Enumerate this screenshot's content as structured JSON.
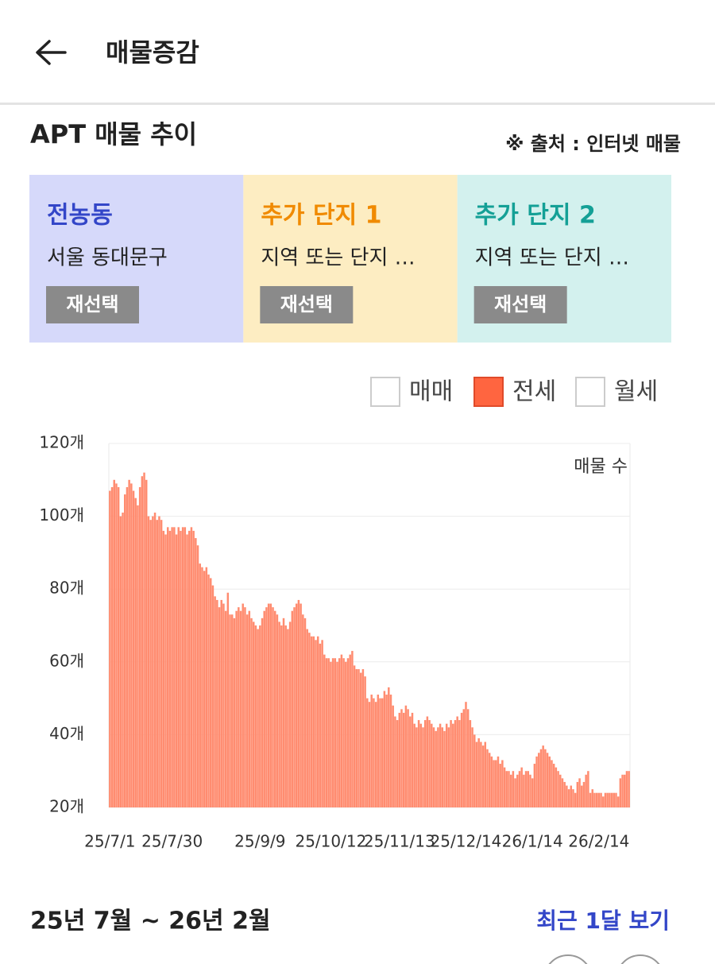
{
  "header": {
    "title": "매물증감"
  },
  "section": {
    "title": "APT 매물 추이",
    "source": "※ 출처 : 인터넷 매물"
  },
  "cards": [
    {
      "name": "전농동",
      "region": "서울 동대문구",
      "button": "재선택"
    },
    {
      "name": "추가 단지 1",
      "region": "지역 또는 단지 …",
      "button": "재선택"
    },
    {
      "name": "추가 단지 2",
      "region": "지역 또는 단지 …",
      "button": "재선택"
    }
  ],
  "filters": {
    "check_color": "#ff6540",
    "items": [
      {
        "label": "매매",
        "checked": false
      },
      {
        "label": "전세",
        "checked": true
      },
      {
        "label": "월세",
        "checked": false
      }
    ]
  },
  "chart_data": {
    "type": "bar",
    "annotation": "매물 수",
    "color": "#ff8c70",
    "grid": true,
    "ylim": [
      20,
      120
    ],
    "yticks": [
      {
        "value": 20,
        "label": "20개"
      },
      {
        "value": 40,
        "label": "40개"
      },
      {
        "value": 60,
        "label": "60개"
      },
      {
        "value": 80,
        "label": "80개"
      },
      {
        "value": 100,
        "label": "100개"
      },
      {
        "value": 120,
        "label": "120개"
      }
    ],
    "categories": [
      "25/7/1",
      null,
      null,
      null,
      null,
      null,
      null,
      null,
      null,
      null,
      null,
      null,
      null,
      null,
      null,
      null,
      null,
      null,
      null,
      null,
      null,
      null,
      null,
      null,
      null,
      null,
      null,
      null,
      null,
      "25/7/30",
      null,
      null,
      null,
      null,
      null,
      null,
      null,
      null,
      null,
      null,
      null,
      null,
      null,
      null,
      null,
      null,
      null,
      null,
      null,
      null,
      null,
      null,
      null,
      null,
      null,
      null,
      null,
      null,
      null,
      null,
      null,
      null,
      null,
      null,
      null,
      null,
      null,
      null,
      null,
      null,
      "25/9/9",
      null,
      null,
      null,
      null,
      null,
      null,
      null,
      null,
      null,
      null,
      null,
      null,
      null,
      null,
      null,
      null,
      null,
      null,
      null,
      null,
      null,
      null,
      null,
      null,
      null,
      null,
      null,
      null,
      null,
      null,
      null,
      null,
      "25/10/12",
      null,
      null,
      null,
      null,
      null,
      null,
      null,
      null,
      null,
      null,
      null,
      null,
      null,
      null,
      null,
      null,
      null,
      null,
      null,
      null,
      null,
      null,
      null,
      null,
      null,
      null,
      null,
      null,
      null,
      null,
      null,
      "25/11/13",
      null,
      null,
      null,
      null,
      null,
      null,
      null,
      null,
      null,
      null,
      null,
      null,
      null,
      null,
      null,
      null,
      null,
      null,
      null,
      null,
      null,
      null,
      null,
      null,
      null,
      null,
      null,
      null,
      null,
      null,
      "25/12/14",
      null,
      null,
      null,
      null,
      null,
      null,
      null,
      null,
      null,
      null,
      null,
      null,
      null,
      null,
      null,
      null,
      null,
      null,
      null,
      null,
      null,
      null,
      null,
      null,
      null,
      null,
      null,
      null,
      null,
      null,
      "26/1/14",
      null,
      null,
      null,
      null,
      null,
      null,
      null,
      null,
      null,
      null,
      null,
      null,
      null,
      null,
      null,
      null,
      null,
      null,
      null,
      null,
      null,
      null,
      null,
      null,
      null,
      null,
      null,
      null,
      null,
      null,
      "26/2/14",
      null,
      null,
      null,
      null,
      null,
      null,
      null,
      null,
      null,
      null,
      null,
      null,
      null,
      null
    ],
    "values": [
      107,
      108,
      110,
      109,
      108,
      100,
      101,
      106,
      108,
      110,
      109,
      107,
      105,
      103,
      108,
      111,
      112,
      110,
      100,
      99,
      100,
      101,
      99,
      100,
      99,
      96,
      95,
      97,
      96,
      97,
      97,
      95,
      97,
      96,
      97,
      97,
      95,
      96,
      97,
      96,
      94,
      92,
      87,
      86,
      85,
      86,
      84,
      83,
      81,
      78,
      77,
      75,
      77,
      76,
      74,
      79,
      73,
      73,
      72,
      74,
      75,
      74,
      76,
      75,
      73,
      74,
      72,
      71,
      70,
      69,
      70,
      72,
      74,
      75,
      76,
      76,
      75,
      74,
      73,
      71,
      70,
      72,
      70,
      69,
      71,
      74,
      75,
      76,
      77,
      76,
      73,
      72,
      69,
      68,
      67,
      67,
      66,
      67,
      65,
      66,
      62,
      61,
      61,
      60,
      61,
      61,
      60,
      61,
      62,
      61,
      60,
      61,
      62,
      63,
      59,
      58,
      58,
      57,
      58,
      56,
      50,
      49,
      51,
      50,
      49,
      51,
      50,
      50,
      52,
      51,
      53,
      51,
      48,
      45,
      44,
      46,
      47,
      46,
      48,
      47,
      45,
      46,
      43,
      42,
      44,
      43,
      42,
      44,
      45,
      44,
      43,
      42,
      41,
      42,
      43,
      42,
      41,
      43,
      42,
      44,
      43,
      44,
      45,
      44,
      46,
      47,
      49,
      47,
      44,
      42,
      40,
      38,
      39,
      38,
      37,
      38,
      36,
      35,
      34,
      33,
      33,
      34,
      32,
      33,
      31,
      30,
      30,
      29,
      30,
      28,
      29,
      30,
      31,
      29,
      30,
      30,
      29,
      28,
      32,
      34,
      35,
      36,
      37,
      36,
      35,
      34,
      33,
      32,
      31,
      30,
      29,
      28,
      27,
      26,
      25,
      26,
      25,
      24,
      27,
      28,
      26,
      27,
      29,
      30,
      24,
      25,
      24,
      24,
      24,
      24,
      23,
      24,
      24,
      24,
      24,
      24,
      24,
      23,
      28,
      29,
      29,
      30,
      30
    ]
  },
  "footer": {
    "period": "25년 7월 ~ 26년 2월",
    "link": "최근 1달 보기"
  }
}
